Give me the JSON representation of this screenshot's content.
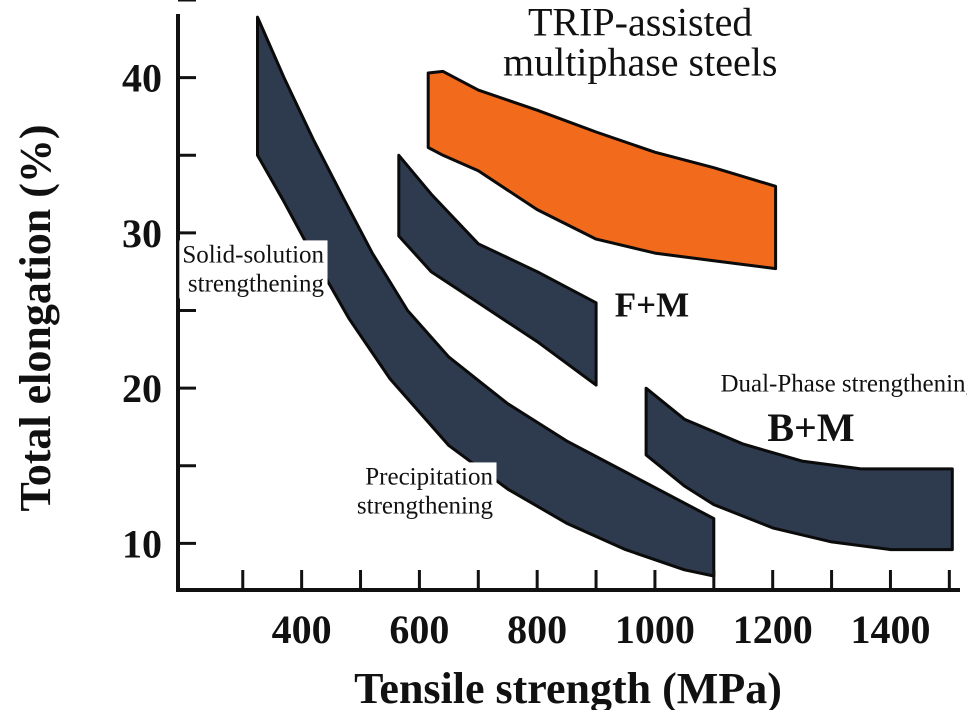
{
  "chart_data": {
    "type": "area",
    "title": "",
    "xlabel": "Tensile strength (MPa)",
    "ylabel": "Total elongation (%)",
    "xlim": [
      190,
      1530
    ],
    "ylim": [
      7,
      45
    ],
    "x_ticks": [
      400,
      600,
      800,
      1000,
      1200,
      1400
    ],
    "x_minor_ticks": [
      300,
      500,
      700,
      900,
      1100,
      1300,
      1500
    ],
    "y_ticks": [
      10,
      20,
      30,
      40
    ],
    "grid": false,
    "legend": "none",
    "colors": {
      "band": "#2e3a4e",
      "trip": "#f26b1d",
      "axis": "#111111"
    },
    "regions": [
      {
        "key": "solid_precip",
        "fill": "#2e3a4e",
        "outline": [
          [
            325,
            43.9
          ],
          [
            370,
            40
          ],
          [
            420,
            36
          ],
          [
            470,
            32.3
          ],
          [
            520,
            28.7
          ],
          [
            580,
            25
          ],
          [
            650,
            22
          ],
          [
            750,
            19
          ],
          [
            850,
            16.6
          ],
          [
            950,
            14.6
          ],
          [
            1100,
            11.6
          ],
          [
            1100,
            7.9
          ],
          [
            1050,
            8.3
          ],
          [
            950,
            9.6
          ],
          [
            850,
            11.3
          ],
          [
            750,
            13.5
          ],
          [
            650,
            16.3
          ],
          [
            550,
            20.6
          ],
          [
            480,
            24.5
          ],
          [
            420,
            28.5
          ],
          [
            370,
            32
          ],
          [
            325,
            35
          ]
        ]
      },
      {
        "key": "fm",
        "fill": "#2e3a4e",
        "outline": [
          [
            565,
            35
          ],
          [
            620,
            32.5
          ],
          [
            700,
            29.3
          ],
          [
            800,
            27.5
          ],
          [
            900,
            25.5
          ],
          [
            900,
            20.2
          ],
          [
            800,
            23
          ],
          [
            700,
            25.5
          ],
          [
            620,
            27.5
          ],
          [
            565,
            29.8
          ]
        ]
      },
      {
        "key": "bm",
        "fill": "#2e3a4e",
        "outline": [
          [
            985,
            20
          ],
          [
            1050,
            18
          ],
          [
            1150,
            16.4
          ],
          [
            1250,
            15.3
          ],
          [
            1350,
            14.8
          ],
          [
            1505,
            14.8
          ],
          [
            1505,
            9.6
          ],
          [
            1400,
            9.6
          ],
          [
            1300,
            10.1
          ],
          [
            1200,
            11
          ],
          [
            1100,
            12.5
          ],
          [
            1050,
            13.7
          ],
          [
            985,
            15.7
          ]
        ]
      },
      {
        "key": "trip",
        "fill": "#f26b1d",
        "outline": [
          [
            615,
            40.3
          ],
          [
            640,
            40.4
          ],
          [
            700,
            39.2
          ],
          [
            800,
            37.9
          ],
          [
            900,
            36.5
          ],
          [
            1000,
            35.2
          ],
          [
            1100,
            34.2
          ],
          [
            1205,
            33
          ],
          [
            1205,
            27.7
          ],
          [
            1100,
            28.2
          ],
          [
            1000,
            28.7
          ],
          [
            900,
            29.6
          ],
          [
            800,
            31.5
          ],
          [
            700,
            34
          ],
          [
            640,
            35
          ],
          [
            615,
            35.5
          ]
        ]
      }
    ],
    "annotations": [
      {
        "key": "trip_label",
        "lines": [
          "TRIP-assisted",
          "multiphase steels"
        ],
        "x": 975,
        "y": 42.7
      },
      {
        "key": "solid_label",
        "lines": [
          "Solid-solution",
          "strengthening"
        ],
        "x": 438,
        "y": 28.1
      },
      {
        "key": "fm_label",
        "lines": [
          "F+M"
        ],
        "x": 995,
        "y": 24.6
      },
      {
        "key": "dp_label",
        "lines": [
          "Dual-Phase strengthening"
        ],
        "x": 1330,
        "y": 19.8
      },
      {
        "key": "bm_label",
        "lines": [
          "B+M"
        ],
        "x": 1265,
        "y": 16.6
      },
      {
        "key": "precip_label",
        "lines": [
          "Precipitation",
          "strengthening"
        ],
        "x": 725,
        "y": 13.8
      }
    ]
  }
}
